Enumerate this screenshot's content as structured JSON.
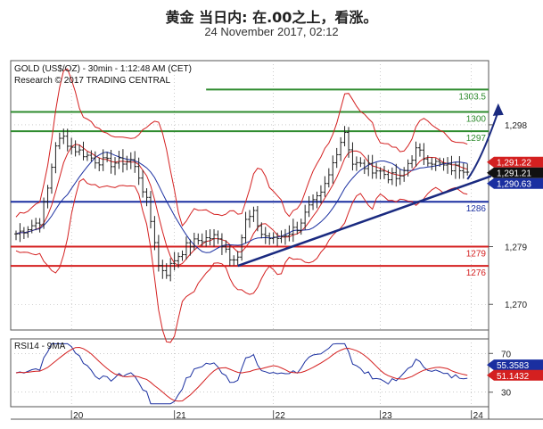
{
  "header": {
    "title": "黄金 当日内: 在.00之上，看涨。",
    "subtitle": "24 November 2017, 02:12"
  },
  "chart_data": {
    "type": "line",
    "info": {
      "instrument": "GOLD (US$/OZ) - 30min - 1:12:48 AM (CET)",
      "copyright": "Research © 2017 TRADING CENTRAL"
    },
    "price_axis": {
      "min": 1266,
      "max": 1308,
      "ticks": [
        {
          "value": 1298,
          "label": "1,298"
        },
        {
          "value": 1279,
          "label": "1,279"
        },
        {
          "value": 1270,
          "label": "1,270"
        }
      ]
    },
    "x_axis": {
      "ticks": [
        {
          "index": 14,
          "label": "20"
        },
        {
          "index": 40,
          "label": "21"
        },
        {
          "index": 65,
          "label": "22"
        },
        {
          "index": 92,
          "label": "23"
        },
        {
          "index": 115,
          "label": "24"
        }
      ],
      "n": 118
    },
    "levels": [
      {
        "value": 1303.5,
        "label": "1303.5",
        "color": "#2e8b2e"
      },
      {
        "value": 1300,
        "label": "1300",
        "color": "#2e8b2e"
      },
      {
        "value": 1297,
        "label": "1297",
        "color": "#2e8b2e"
      },
      {
        "value": 1286,
        "label": "1286",
        "color": "#1a2fa0"
      },
      {
        "value": 1279,
        "label": "1279",
        "color": "#d42020"
      },
      {
        "value": 1276,
        "label": "1276",
        "color": "#d42020"
      }
    ],
    "price_badges": [
      {
        "value": 1291.22,
        "label": "1,291.22",
        "color": "#d42020"
      },
      {
        "value": 1291.21,
        "label": "1,291.21",
        "color": "#111111"
      },
      {
        "value": 1290.63,
        "label": "1,290.63",
        "color": "#1a2fa0"
      }
    ],
    "trendline": {
      "from": [
        56,
        1276
      ],
      "to": [
        120,
        1290
      ]
    },
    "target_arrow": {
      "from": [
        114,
        1289.5
      ],
      "to": [
        122,
        1300.5
      ],
      "color": "#1a2a80"
    },
    "close_anchors": [
      [
        0,
        1281
      ],
      [
        3,
        1282
      ],
      [
        6,
        1283
      ],
      [
        8,
        1288
      ],
      [
        10,
        1295
      ],
      [
        12,
        1296
      ],
      [
        14,
        1294.5
      ],
      [
        17,
        1293.5
      ],
      [
        20,
        1292.5
      ],
      [
        24,
        1292
      ],
      [
        29,
        1292.5
      ],
      [
        31,
        1290
      ],
      [
        33,
        1286
      ],
      [
        35,
        1280
      ],
      [
        36,
        1276
      ],
      [
        38,
        1275
      ],
      [
        40,
        1277
      ],
      [
        43,
        1279
      ],
      [
        46,
        1280
      ],
      [
        50,
        1280.5
      ],
      [
        53,
        1279
      ],
      [
        54,
        1277
      ],
      [
        56,
        1278
      ],
      [
        58,
        1283
      ],
      [
        60,
        1284
      ],
      [
        62,
        1281
      ],
      [
        65,
        1280
      ],
      [
        68,
        1281
      ],
      [
        71,
        1282
      ],
      [
        74,
        1285
      ],
      [
        77,
        1287
      ],
      [
        79,
        1290
      ],
      [
        81,
        1294
      ],
      [
        83,
        1297
      ],
      [
        85,
        1292
      ],
      [
        88,
        1291.5
      ],
      [
        91,
        1291
      ],
      [
        94,
        1290
      ],
      [
        97,
        1289.5
      ],
      [
        99,
        1292
      ],
      [
        101,
        1294
      ],
      [
        103,
        1293
      ],
      [
        106,
        1292
      ],
      [
        108,
        1291.5
      ],
      [
        110,
        1291.2
      ],
      [
        112,
        1291.3
      ],
      [
        114,
        1291.2
      ]
    ],
    "rsi": {
      "title": "RSI14 - 9MA",
      "ticks": [
        {
          "value": 70,
          "label": "70"
        },
        {
          "value": 30,
          "label": "30"
        }
      ],
      "min": 15,
      "max": 85,
      "badges": [
        {
          "value": 55.3583,
          "label": "55.3583",
          "color": "#1a2fa0"
        },
        {
          "value": 51.1432,
          "label": "51.1432",
          "color": "#d42020"
        }
      ]
    }
  }
}
